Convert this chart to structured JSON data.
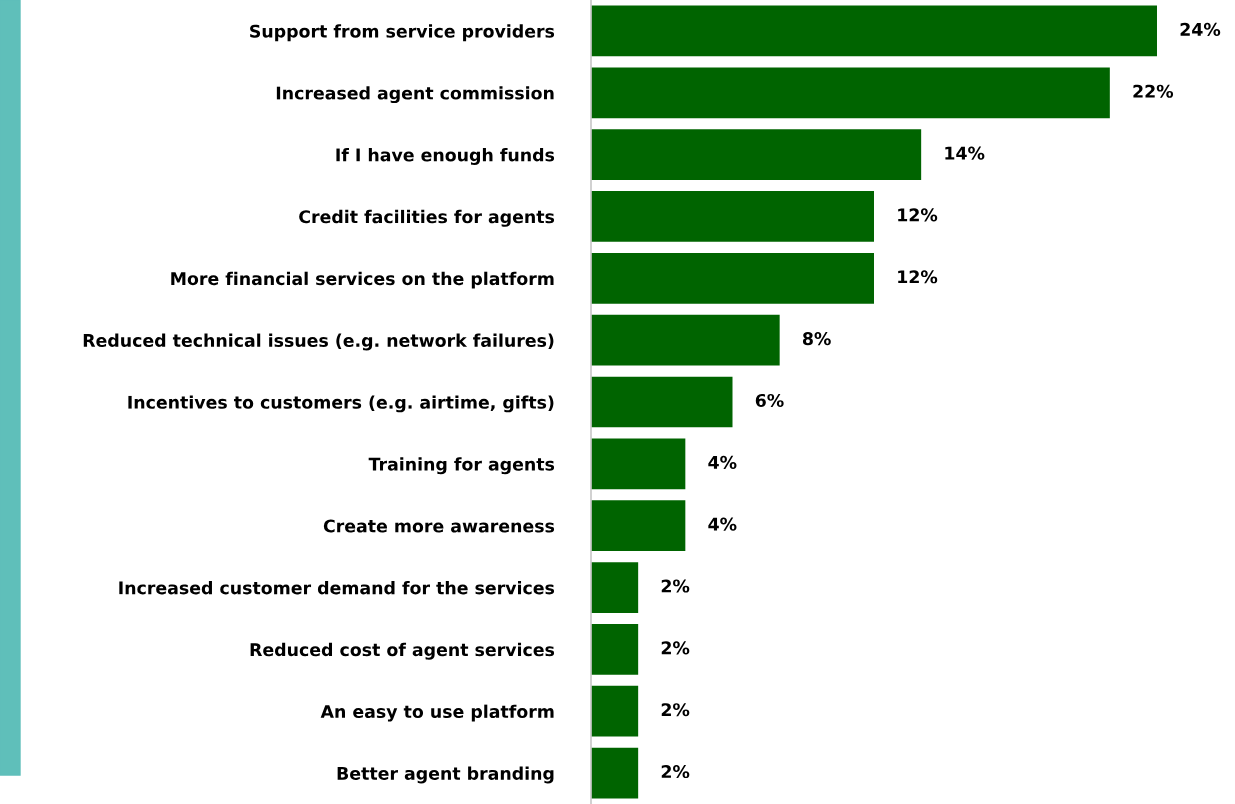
{
  "chart_data": {
    "type": "bar",
    "orientation": "horizontal",
    "categories": [
      "Support from service providers",
      "Increased agent commission",
      "If I have enough funds",
      "Credit facilities for agents",
      "More financial services on the platform",
      "Reduced technical issues (e.g. network failures)",
      "Incentives to customers (e.g. airtime, gifts)",
      "Training for agents",
      "Create more awareness",
      "Increased customer demand for the services",
      "Reduced cost of agent services",
      "An easy to use platform",
      "Better agent branding"
    ],
    "values": [
      24,
      22,
      14,
      12,
      12,
      8,
      6,
      4,
      4,
      2,
      2,
      2,
      2
    ],
    "value_labels": [
      "24%",
      "22%",
      "14%",
      "12%",
      "12%",
      "8%",
      "6%",
      "4%",
      "4%",
      "2%",
      "2%",
      "2%",
      "2%"
    ],
    "color": "#006400",
    "tick_labels": "y",
    "grid": false,
    "legend": false
  }
}
